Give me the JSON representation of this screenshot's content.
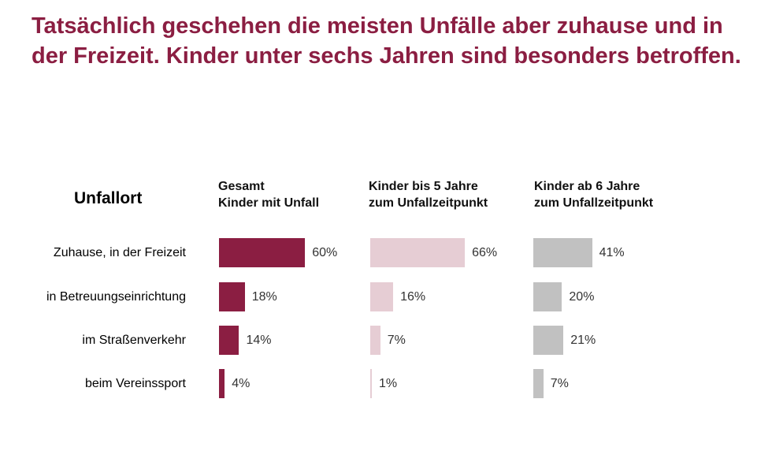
{
  "headline": "Tatsächlich geschehen die meisten Unfälle aber zuhause und in der Freizeit. Kinder unter sechs Jahren sind besonders betroffen.",
  "chart_data": {
    "type": "bar",
    "orientation": "horizontal",
    "row_heading": "Unfallort",
    "categories": [
      "Zuhause, in der Freizeit",
      "in Betreuungseinrichtung",
      "im Straßenverkehr",
      "beim Vereinssport"
    ],
    "series": [
      {
        "name_lines": [
          "Gesamt",
          "Kinder mit Unfall"
        ],
        "color": "#8b1e42",
        "values": [
          60,
          18,
          14,
          4
        ]
      },
      {
        "name_lines": [
          "Kinder bis 5 Jahre",
          "zum Unfallzeitpunkt"
        ],
        "color": "#e6cdd4",
        "values": [
          66,
          16,
          7,
          1
        ]
      },
      {
        "name_lines": [
          "Kinder ab 6 Jahre",
          "zum Unfallzeitpunkt"
        ],
        "color": "#c1c1c1",
        "values": [
          41,
          20,
          21,
          7
        ]
      }
    ],
    "unit": "%",
    "xlim": [
      0,
      100
    ],
    "grid": false,
    "legend": "none"
  }
}
